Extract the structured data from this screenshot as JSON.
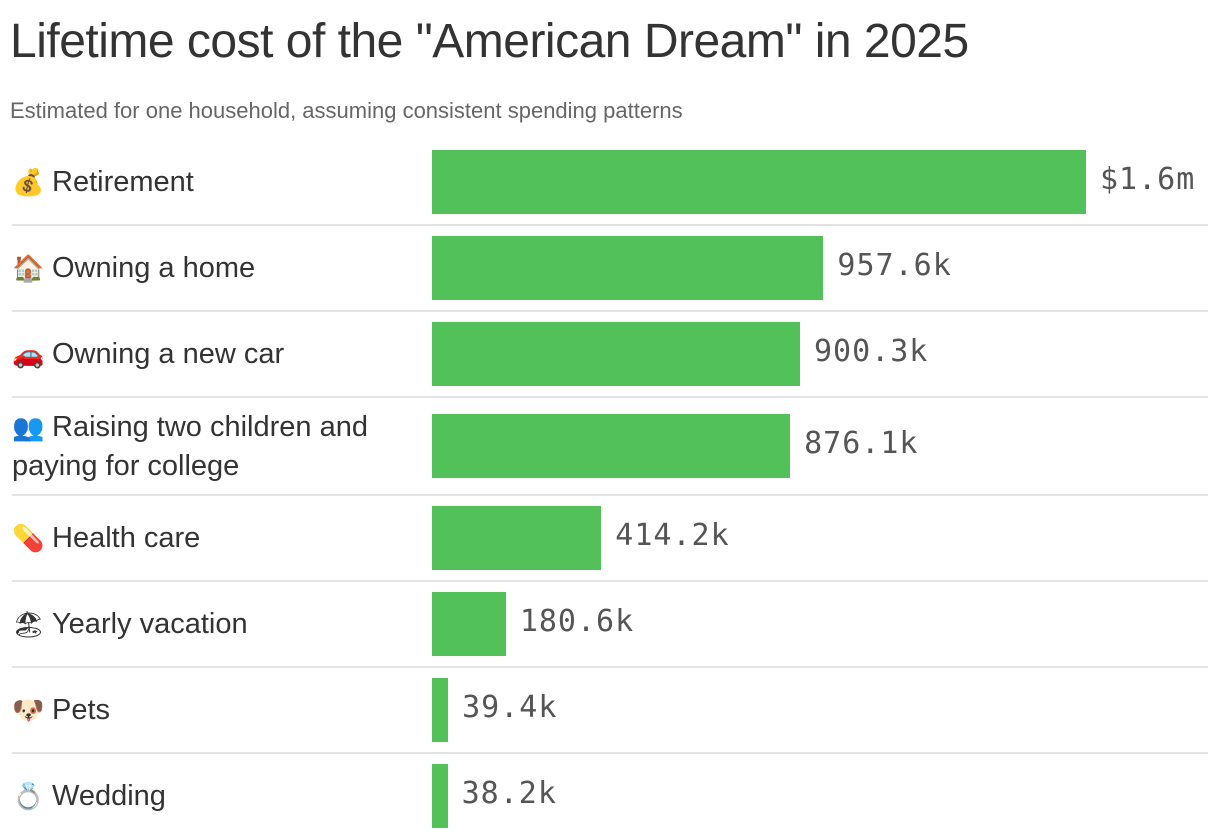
{
  "title": "Lifetime cost of the \"American Dream\" in 2025",
  "subtitle": "Estimated for one household, assuming consistent spending patterns",
  "chart_data": {
    "type": "bar",
    "orientation": "horizontal",
    "bar_color": "#52c15a",
    "categories": [
      "Retirement",
      "Owning a home",
      "Owning a new car",
      "Raising two children and paying for college",
      "Health care",
      "Yearly vacation",
      "Pets",
      "Wedding"
    ],
    "icons": [
      "money-bag-icon",
      "house-icon",
      "car-icon",
      "people-icon",
      "pill-icon",
      "beach-umbrella-icon",
      "dog-icon",
      "ring-icon"
    ],
    "icon_glyphs": [
      "💰",
      "🏠",
      "🚗",
      "👥",
      "💊",
      "🏖",
      "🐶",
      "💍"
    ],
    "values": [
      1600000,
      957600,
      900300,
      876100,
      414200,
      180600,
      39400,
      38200
    ],
    "value_labels": [
      "$1.6m",
      "957.6k",
      "900.3k",
      "876.1k",
      "414.2k",
      "180.6k",
      "39.4k",
      "38.2k"
    ],
    "xlim": [
      0,
      1600000
    ],
    "grid": false
  }
}
